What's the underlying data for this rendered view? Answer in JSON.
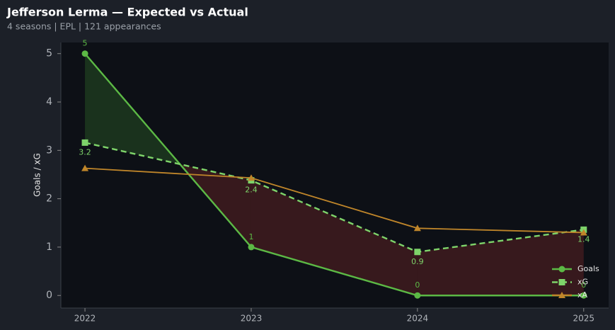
{
  "chart_data": {
    "type": "line",
    "title": "Jefferson Lerma — Expected vs Actual",
    "subtitle": "4 seasons | EPL | 121 appearances",
    "y_label": "Goals / xG",
    "x": [
      2022,
      2023,
      2024,
      2025
    ],
    "xlim": [
      2021.855,
      2025.15
    ],
    "xticks": [
      2022,
      2023,
      2024,
      2025
    ],
    "ylim": [
      -0.26,
      5.23
    ],
    "yticks": [
      0,
      1,
      2,
      3,
      4,
      5
    ],
    "legend": "lower right",
    "series": [
      {
        "name": "Goals",
        "color": "#5cb945",
        "marker": "circle",
        "dashed": false,
        "values": [
          5,
          1,
          0,
          0
        ],
        "value_labels": [
          "5",
          "1",
          "0",
          "0"
        ]
      },
      {
        "name": "xG",
        "color": "#7ed46a",
        "marker": "square",
        "dashed": true,
        "values": [
          3.16,
          2.38,
          0.9,
          1.36
        ],
        "value_labels": [
          "3.2",
          "2.4",
          "0.9",
          "1.4"
        ]
      },
      {
        "name": "xA",
        "color": "#c0862a",
        "marker": "triangle",
        "dashed": false,
        "values": [
          2.63,
          2.43,
          1.39,
          1.3
        ]
      }
    ]
  }
}
